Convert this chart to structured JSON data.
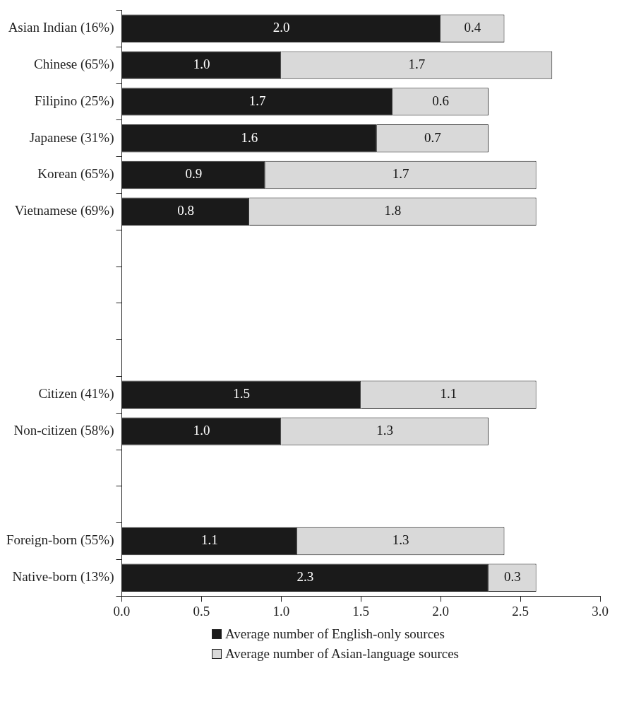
{
  "chart_data": {
    "type": "bar",
    "orientation": "horizontal",
    "stacked": true,
    "categories": [
      "Asian Indian (16%)",
      "Chinese (65%)",
      "Filipino (25%)",
      "Japanese (31%)",
      "Korean (65%)",
      "Vietnamese (69%)",
      null,
      null,
      null,
      null,
      "Citizen (41%)",
      "Non-citizen (58%)",
      null,
      null,
      "Foreign-born (55%)",
      "Native-born (13%)"
    ],
    "series": [
      {
        "name": "Average number of English-only sources",
        "color": "#1a1a1a",
        "values": [
          2.0,
          1.0,
          1.7,
          1.6,
          0.9,
          0.8,
          null,
          null,
          null,
          null,
          1.5,
          1.0,
          null,
          null,
          1.1,
          2.3
        ],
        "value_labels": [
          "2.0",
          "1.0",
          "1.7",
          "1.6",
          "0.9",
          "0.8",
          null,
          null,
          null,
          null,
          "1.5",
          "1.0",
          null,
          null,
          "1.1",
          "2.3"
        ]
      },
      {
        "name": "Average number of Asian-language sources",
        "color": "#d9d9d9",
        "values": [
          0.4,
          1.7,
          0.6,
          0.7,
          1.7,
          1.8,
          null,
          null,
          null,
          null,
          1.1,
          1.3,
          null,
          null,
          1.3,
          0.3
        ],
        "value_labels": [
          "0.4",
          "1.7",
          "0.6",
          "0.7",
          "1.7",
          "1.8",
          null,
          null,
          null,
          null,
          "1.1",
          "1.3",
          null,
          null,
          "1.3",
          "0.3"
        ]
      }
    ],
    "xlim": [
      0,
      3
    ],
    "xticks": [
      {
        "value": 0,
        "label": "0.0"
      },
      {
        "value": 0.5,
        "label": "0.5"
      },
      {
        "value": 1,
        "label": "1.0"
      },
      {
        "value": 1.5,
        "label": "1.5"
      },
      {
        "value": 2,
        "label": "2.0"
      },
      {
        "value": 2.5,
        "label": "2.5"
      },
      {
        "value": 3,
        "label": "3.0"
      }
    ],
    "grid": false,
    "legend": "bottom"
  }
}
